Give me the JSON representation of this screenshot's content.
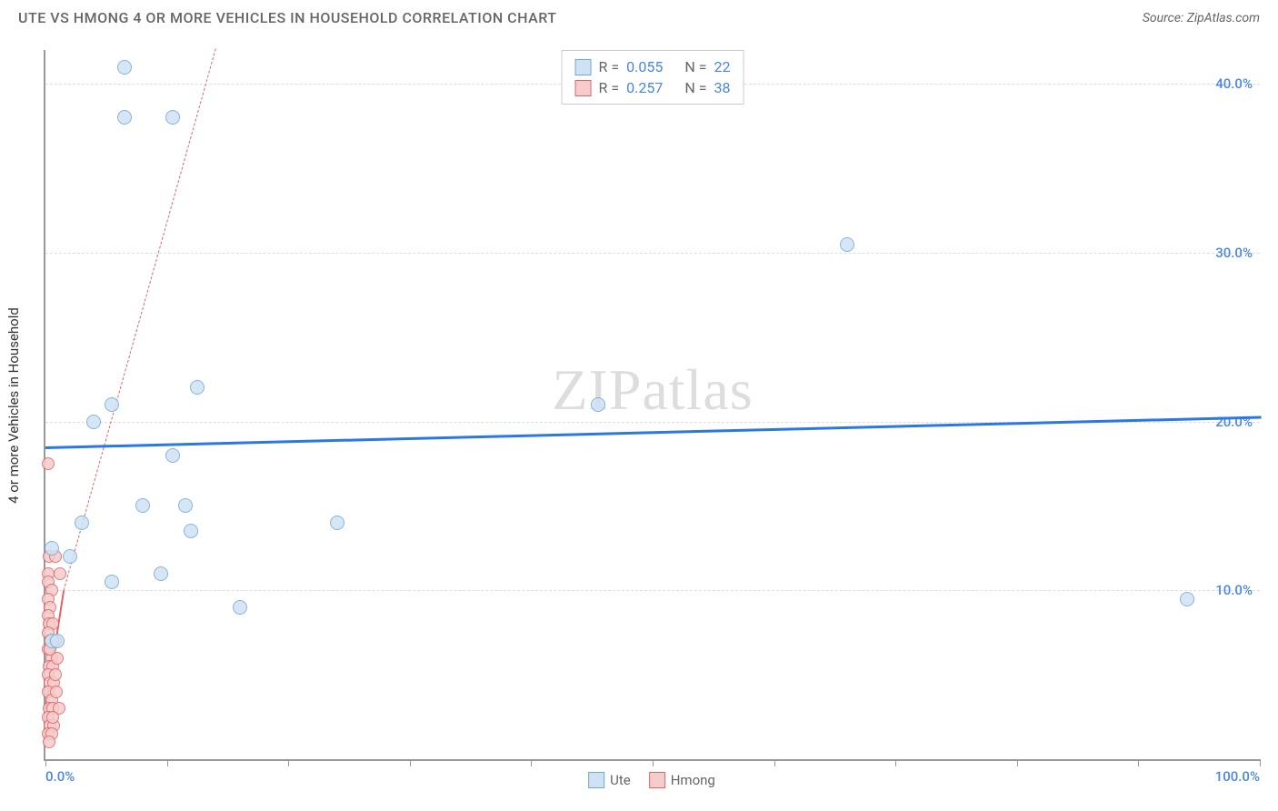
{
  "title": "UTE VS HMONG 4 OR MORE VEHICLES IN HOUSEHOLD CORRELATION CHART",
  "source": "Source: ZipAtlas.com",
  "ylabel": "4 or more Vehicles in Household",
  "watermark": {
    "part1": "ZIP",
    "part2": "atlas"
  },
  "chart": {
    "type": "scatter",
    "xlim": [
      0,
      100
    ],
    "ylim": [
      0,
      42
    ],
    "y_ticks": [
      10,
      20,
      30,
      40
    ],
    "y_tick_labels": [
      "10.0%",
      "20.0%",
      "30.0%",
      "40.0%"
    ],
    "y_tick_color": "#4a86e8",
    "x_ticks": [
      0,
      10,
      20,
      30,
      40,
      50,
      60,
      70,
      80,
      90,
      100
    ],
    "x_tick_labels": [
      "0.0%",
      "100.0%"
    ],
    "x_tick_label_positions": [
      0,
      100
    ],
    "x_tick_color": "#4a86e8",
    "grid_color": "#dddddd",
    "axis_color": "#999999",
    "background_color": "#ffffff",
    "series": [
      {
        "name": "Ute",
        "marker_fill": "#cfe2f3",
        "marker_stroke": "#6fa8dc",
        "marker_size": 16,
        "trend_color": "#2b78e4",
        "trend_width": 3,
        "trend_style": "solid",
        "trend_start_y": 18.5,
        "trend_end_y": 20.3,
        "trend_extends_negative": false,
        "R": "0.055",
        "N": "22",
        "points": [
          {
            "x": 6.5,
            "y": 41.0
          },
          {
            "x": 6.5,
            "y": 38.0
          },
          {
            "x": 10.5,
            "y": 38.0
          },
          {
            "x": 66.0,
            "y": 30.5
          },
          {
            "x": 12.5,
            "y": 22.0
          },
          {
            "x": 5.5,
            "y": 21.0
          },
          {
            "x": 45.5,
            "y": 21.0
          },
          {
            "x": 4.0,
            "y": 20.0
          },
          {
            "x": 10.5,
            "y": 18.0
          },
          {
            "x": 8.0,
            "y": 15.0
          },
          {
            "x": 11.5,
            "y": 15.0
          },
          {
            "x": 3.0,
            "y": 14.0
          },
          {
            "x": 12.0,
            "y": 13.5
          },
          {
            "x": 24.0,
            "y": 14.0
          },
          {
            "x": 0.5,
            "y": 12.5
          },
          {
            "x": 2.0,
            "y": 12.0
          },
          {
            "x": 9.5,
            "y": 11.0
          },
          {
            "x": 5.5,
            "y": 10.5
          },
          {
            "x": 94.0,
            "y": 9.5
          },
          {
            "x": 16.0,
            "y": 9.0
          },
          {
            "x": 0.5,
            "y": 7.0
          },
          {
            "x": 1.0,
            "y": 7.0
          }
        ]
      },
      {
        "name": "Hmong",
        "marker_fill": "#f4cccc",
        "marker_stroke": "#e06666",
        "marker_size": 14,
        "trend_color": "#e06666",
        "trend_width": 2,
        "trend_style": "solid",
        "trend_extension_style": "dashed",
        "trend_start_x": 0,
        "trend_end_x": 1.5,
        "trend_start_y": 3.0,
        "trend_end_y": 10.0,
        "trend_ext_end_x": 14.0,
        "trend_ext_end_y": 60.0,
        "R": "0.257",
        "N": "38",
        "points": [
          {
            "x": 0.2,
            "y": 17.5
          },
          {
            "x": 0.3,
            "y": 12.0
          },
          {
            "x": 0.8,
            "y": 12.0
          },
          {
            "x": 0.2,
            "y": 11.0
          },
          {
            "x": 1.2,
            "y": 11.0
          },
          {
            "x": 0.2,
            "y": 10.5
          },
          {
            "x": 0.5,
            "y": 10.0
          },
          {
            "x": 0.2,
            "y": 9.5
          },
          {
            "x": 0.4,
            "y": 9.0
          },
          {
            "x": 0.2,
            "y": 8.5
          },
          {
            "x": 0.3,
            "y": 8.0
          },
          {
            "x": 0.6,
            "y": 8.0
          },
          {
            "x": 0.2,
            "y": 7.5
          },
          {
            "x": 0.4,
            "y": 7.0
          },
          {
            "x": 0.8,
            "y": 7.0
          },
          {
            "x": 0.2,
            "y": 6.5
          },
          {
            "x": 0.5,
            "y": 6.0
          },
          {
            "x": 0.3,
            "y": 5.5
          },
          {
            "x": 0.6,
            "y": 5.5
          },
          {
            "x": 0.2,
            "y": 5.0
          },
          {
            "x": 0.4,
            "y": 4.5
          },
          {
            "x": 0.7,
            "y": 4.5
          },
          {
            "x": 0.2,
            "y": 4.0
          },
          {
            "x": 0.5,
            "y": 3.5
          },
          {
            "x": 0.3,
            "y": 3.0
          },
          {
            "x": 0.6,
            "y": 3.0
          },
          {
            "x": 0.2,
            "y": 2.5
          },
          {
            "x": 0.4,
            "y": 2.0
          },
          {
            "x": 0.7,
            "y": 2.0
          },
          {
            "x": 0.2,
            "y": 1.5
          },
          {
            "x": 0.5,
            "y": 1.5
          },
          {
            "x": 0.3,
            "y": 1.0
          },
          {
            "x": 0.8,
            "y": 5.0
          },
          {
            "x": 1.0,
            "y": 6.0
          },
          {
            "x": 0.9,
            "y": 4.0
          },
          {
            "x": 1.1,
            "y": 3.0
          },
          {
            "x": 0.6,
            "y": 2.5
          },
          {
            "x": 0.4,
            "y": 6.5
          }
        ]
      }
    ]
  },
  "legend_top": {
    "rows": [
      {
        "swatch_fill": "#cfe2f3",
        "swatch_stroke": "#6fa8dc",
        "r_label": "R =",
        "r_value": "0.055",
        "n_label": "N =",
        "n_value": "22"
      },
      {
        "swatch_fill": "#f4cccc",
        "swatch_stroke": "#e06666",
        "r_label": "R =",
        "r_value": "0.257",
        "n_label": "N =",
        "n_value": "38"
      }
    ],
    "value_color": "#4a86e8",
    "label_color": "#666666"
  },
  "legend_bottom": {
    "items": [
      {
        "swatch_fill": "#cfe2f3",
        "swatch_stroke": "#6fa8dc",
        "label": "Ute"
      },
      {
        "swatch_fill": "#f4cccc",
        "swatch_stroke": "#e06666",
        "label": "Hmong"
      }
    ],
    "label_color": "#666666"
  }
}
